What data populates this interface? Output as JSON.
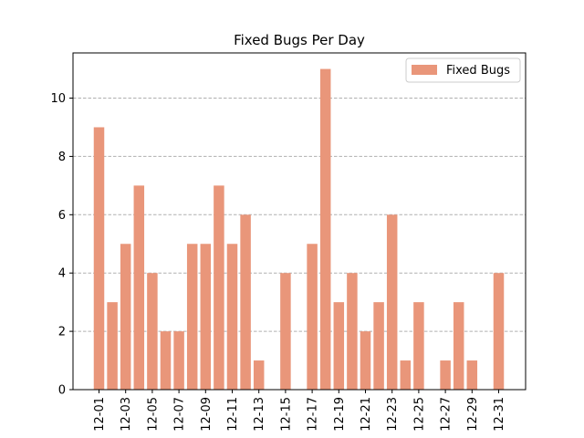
{
  "chart_data": {
    "type": "bar",
    "title": "Fixed Bugs Per Day",
    "xlabel": "",
    "ylabel": "",
    "categories": [
      "12-01",
      "12-02",
      "12-03",
      "12-04",
      "12-05",
      "12-06",
      "12-07",
      "12-08",
      "12-09",
      "12-10",
      "12-11",
      "12-12",
      "12-13",
      "12-14",
      "12-15",
      "12-16",
      "12-17",
      "12-18",
      "12-19",
      "12-20",
      "12-21",
      "12-22",
      "12-23",
      "12-24",
      "12-25",
      "12-26",
      "12-27",
      "12-28",
      "12-29",
      "12-30",
      "12-31"
    ],
    "x_tick_labels": [
      "12-01",
      "12-03",
      "12-05",
      "12-07",
      "12-09",
      "12-11",
      "12-13",
      "12-15",
      "12-17",
      "12-19",
      "12-21",
      "12-23",
      "12-25",
      "12-27",
      "12-29",
      "12-31"
    ],
    "series": [
      {
        "name": "Fixed Bugs",
        "values": [
          9,
          3,
          5,
          7,
          4,
          2,
          2,
          5,
          5,
          7,
          5,
          6,
          1,
          0,
          4,
          0,
          5,
          11,
          3,
          4,
          2,
          3,
          6,
          1,
          3,
          0,
          1,
          3,
          1,
          0,
          4
        ],
        "color": "#e9967a"
      }
    ],
    "y_ticks": [
      0,
      2,
      4,
      6,
      8,
      10
    ],
    "ylim": [
      0,
      11.55
    ],
    "grid": "y-dashed",
    "legend_position": "top-right"
  }
}
